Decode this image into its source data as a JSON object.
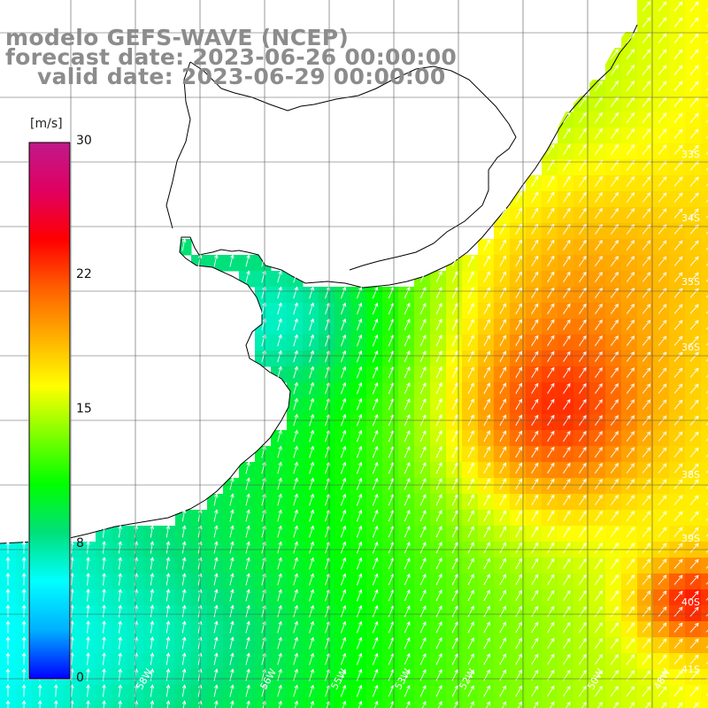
{
  "title": {
    "model": "modelo GEFS-WAVE (NCEP)",
    "forecast": "forecast date: 2023-06-26 00:00:00",
    "valid": "valid date: 2023-06-29 00:00:00"
  },
  "colorbar": {
    "unit": "[m/s]",
    "ticks": [
      "30",
      "22",
      "15",
      "8",
      "0"
    ],
    "colors": [
      "#0000ff",
      "#00b0ff",
      "#00ffff",
      "#00e07a",
      "#00ff00",
      "#80ff00",
      "#ffff00",
      "#ffb000",
      "#ff6000",
      "#ff0000",
      "#e00060",
      "#c01a8a"
    ]
  },
  "lat_labels": [
    "33S",
    "34S",
    "35S",
    "36S",
    "38S",
    "39S",
    "40S",
    "41S"
  ],
  "lon_labels": [
    "58W",
    "56W",
    "55W",
    "53W",
    "52W",
    "50W",
    "48W"
  ],
  "ocean_color_low": "#00aaff",
  "land_color": "#ffffff"
}
